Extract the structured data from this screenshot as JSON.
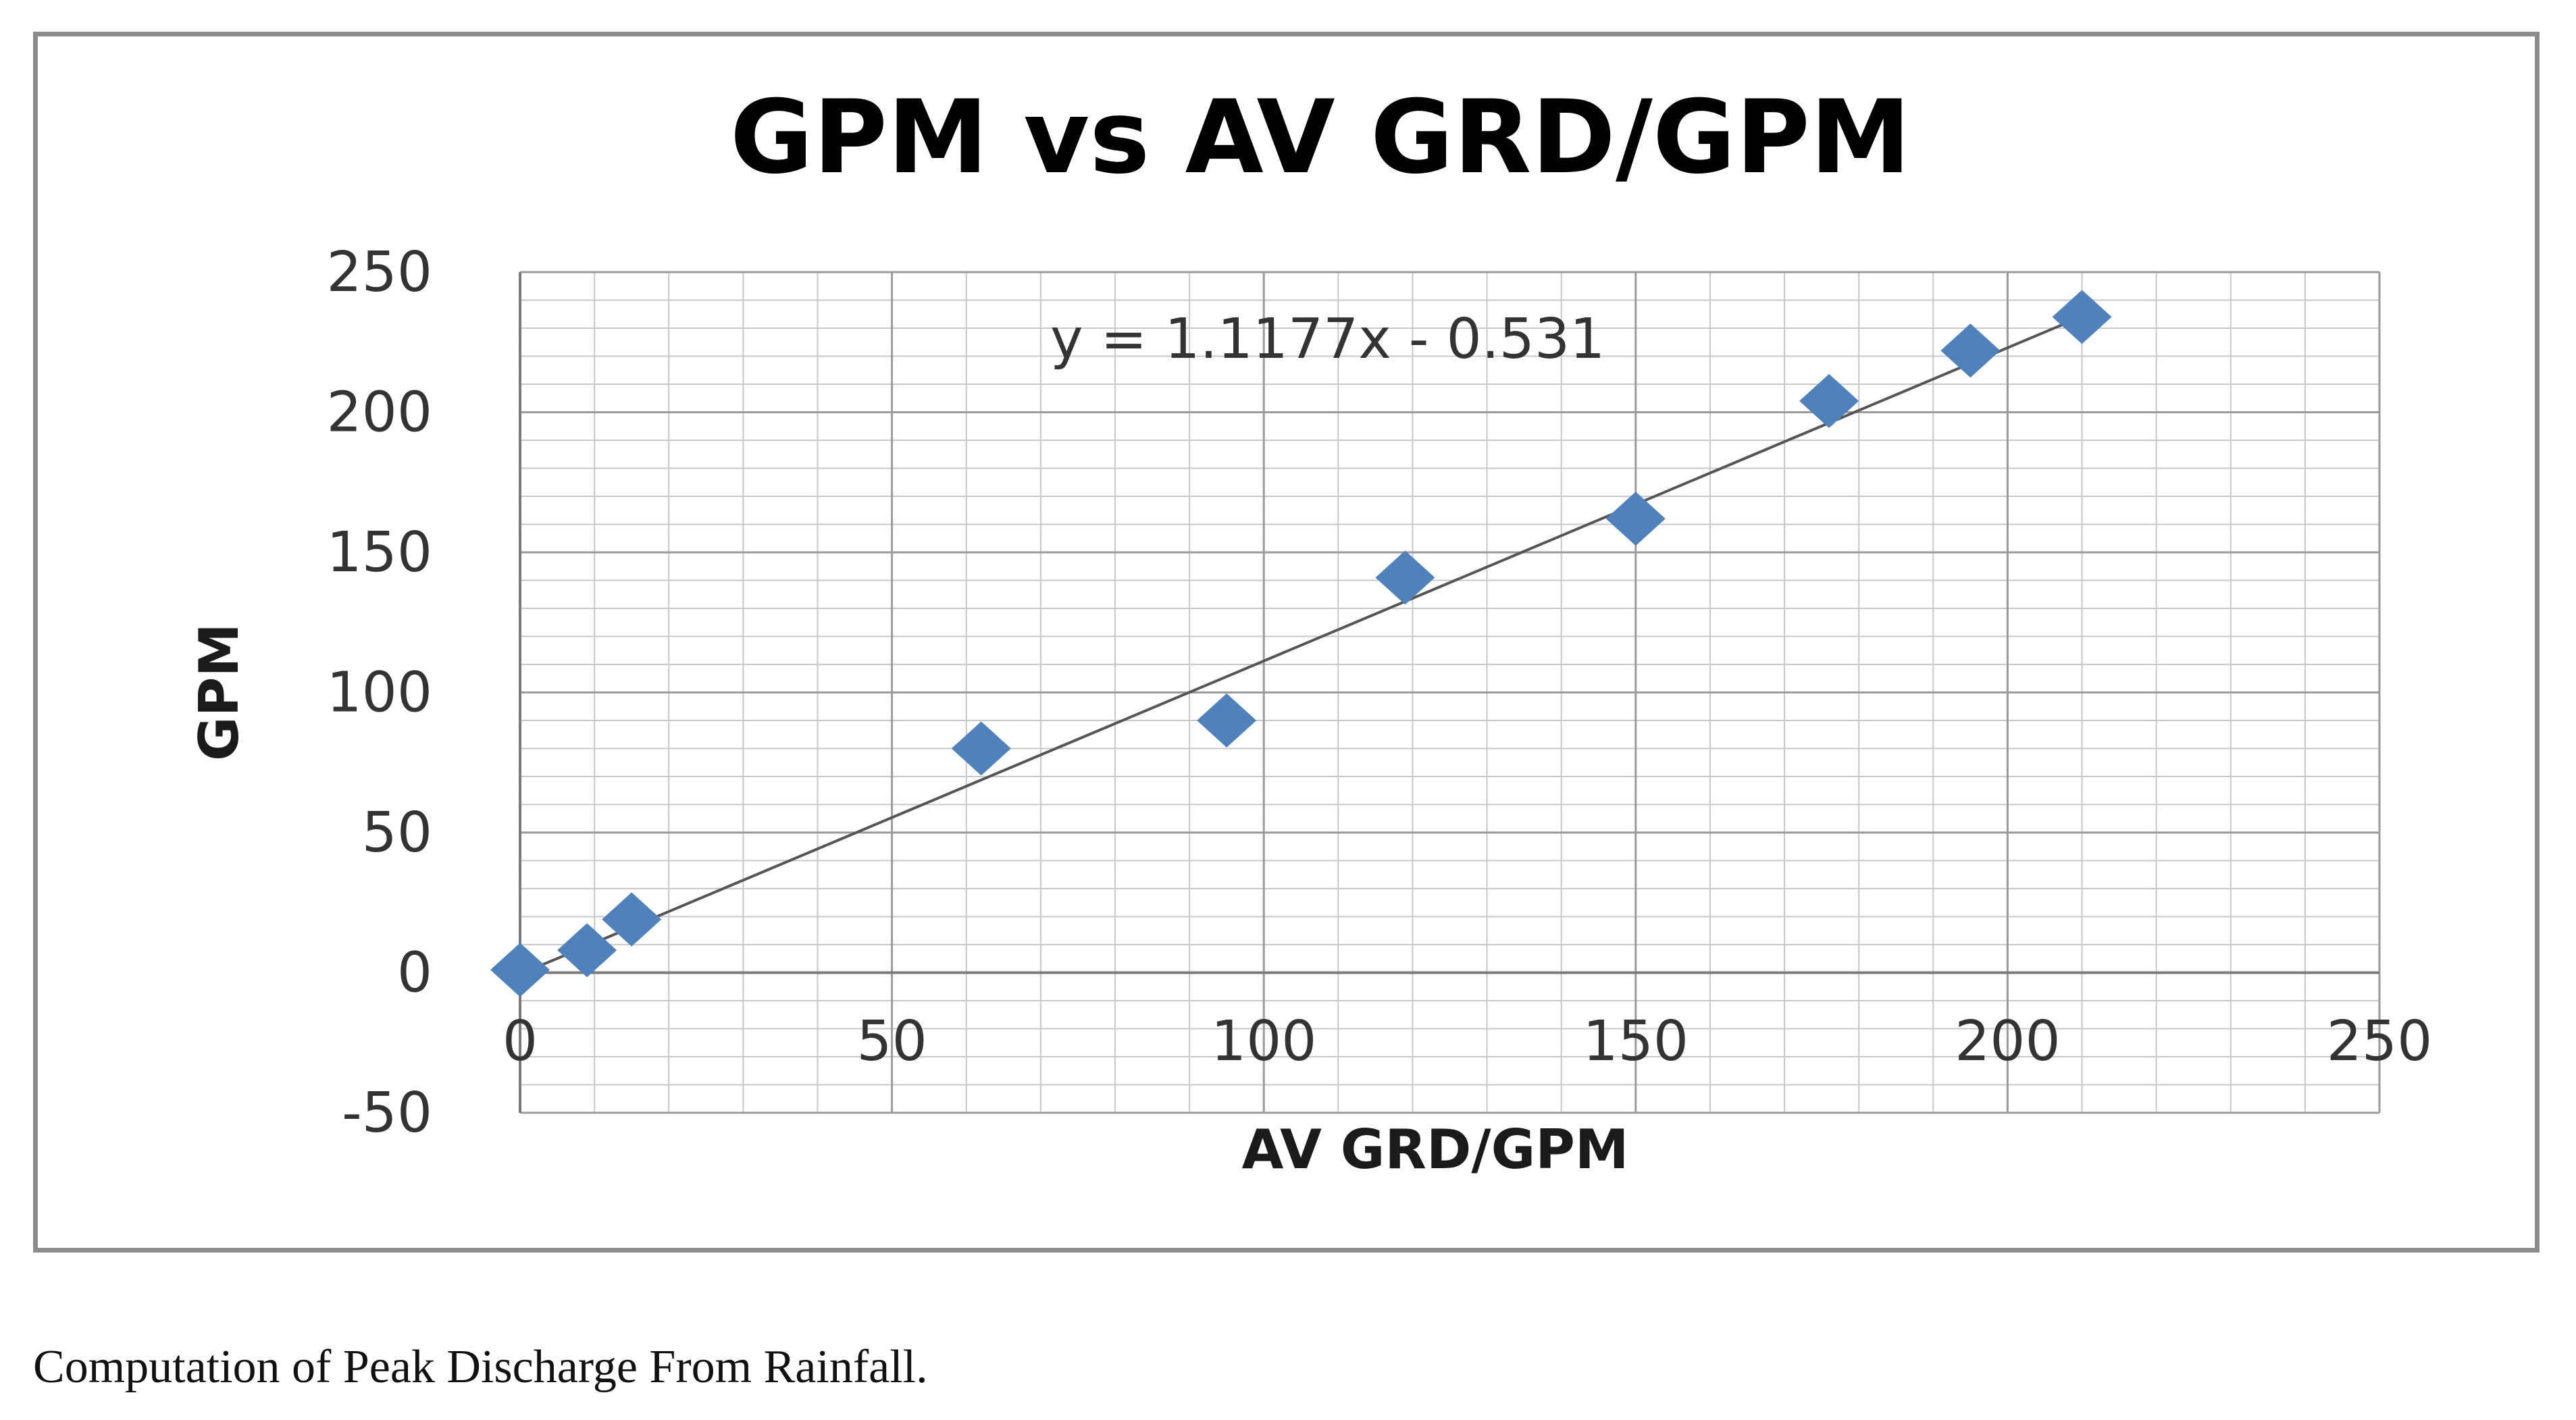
{
  "chart_data": {
    "type": "scatter",
    "title": "GPM vs AV GRD/GPM",
    "xlabel": "AV GRD/GPM",
    "ylabel": "GPM",
    "xlim": [
      0,
      250
    ],
    "ylim": [
      -50,
      250
    ],
    "x_ticks": [
      "0",
      "50",
      "100",
      "150",
      "200",
      "250"
    ],
    "y_ticks": [
      "-50",
      "0",
      "50",
      "100",
      "150",
      "200",
      "250"
    ],
    "grid": true,
    "legend": "none",
    "series": [
      {
        "x": [
          0,
          9,
          15,
          62,
          95,
          119,
          150,
          176,
          195,
          210
        ],
        "y": [
          1,
          8,
          19,
          80,
          90,
          141,
          162,
          204,
          222,
          234
        ]
      }
    ],
    "trendline": {
      "type": "linear",
      "slope": 1.1177,
      "intercept": -0.531,
      "equation": "y = 1.1177x - 0.531"
    },
    "colors": {
      "marker": "#4f81bd",
      "trendline": "#555555",
      "grid": "#bfbfbf",
      "frame": "#8c8c8c"
    }
  },
  "caption": "Computation of Peak Discharge From Rainfall."
}
